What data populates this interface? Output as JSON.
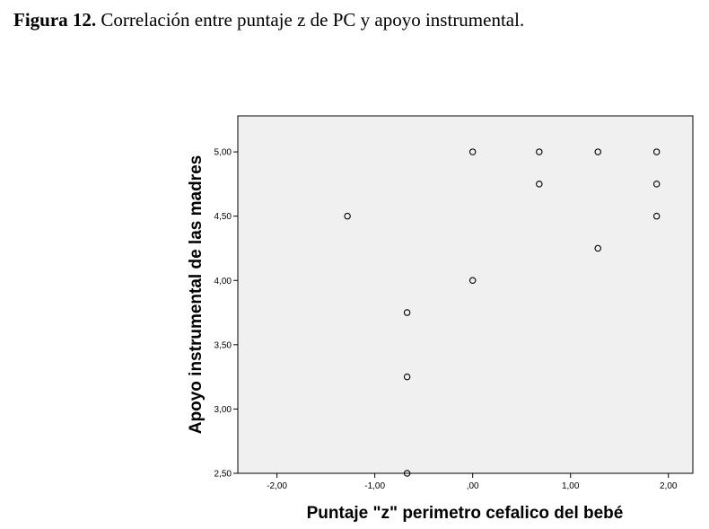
{
  "caption": {
    "label": "Figura 12.",
    "text": "Correlación entre puntaje z de PC y apoyo instrumental."
  },
  "chart_data": {
    "type": "scatter",
    "title": "",
    "xlabel": "Puntaje \"z\" perimetro cefalico del bebé",
    "ylabel": "Apoyo instrumental de las madres",
    "xlim": [
      -2.4,
      2.25
    ],
    "ylim": [
      2.5,
      5.28
    ],
    "xticks": [
      -2,
      -1,
      0,
      1,
      2
    ],
    "xtick_labels": [
      "-2,00",
      "-1,00",
      ",00",
      "1,00",
      "2,00"
    ],
    "yticks": [
      2.5,
      3,
      3.5,
      4,
      4.5,
      5
    ],
    "ytick_labels": [
      "2,50",
      "3,00",
      "3,50",
      "4,00",
      "4,50",
      "5,00"
    ],
    "grid": false,
    "plot_background": "#f0f0f0",
    "marker_color": "#000000",
    "points": [
      {
        "x": -1.28,
        "y": 4.5
      },
      {
        "x": -0.67,
        "y": 3.75
      },
      {
        "x": -0.67,
        "y": 3.25
      },
      {
        "x": -0.67,
        "y": 2.5
      },
      {
        "x": 0.0,
        "y": 5.0
      },
      {
        "x": 0.0,
        "y": 4.0
      },
      {
        "x": 0.68,
        "y": 5.0
      },
      {
        "x": 0.68,
        "y": 4.75
      },
      {
        "x": 1.28,
        "y": 5.0
      },
      {
        "x": 1.28,
        "y": 4.25
      },
      {
        "x": 1.88,
        "y": 5.0
      },
      {
        "x": 1.88,
        "y": 4.75
      },
      {
        "x": 1.88,
        "y": 4.5
      }
    ]
  }
}
